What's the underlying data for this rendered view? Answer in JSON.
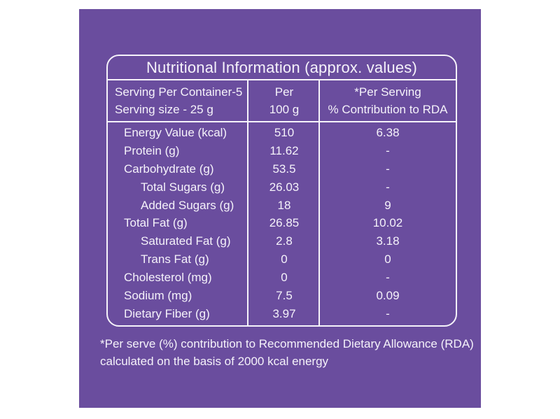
{
  "colors": {
    "canvas_background": "#ffffff",
    "panel_background": "#6a4d9e",
    "text_and_borders": "#f5f2fa"
  },
  "label": {
    "title": "Nutritional Information (approx. values)",
    "header": {
      "serving_line1": "Serving Per Container-5",
      "serving_line2": "Serving size - 25 g",
      "per100_line1": "Per",
      "per100_line2": "100 g",
      "rda_line1": "*Per Serving",
      "rda_line2": "% Contribution to RDA"
    },
    "rows": [
      {
        "name": "Energy Value (kcal)",
        "per_100g": "510",
        "rda": "6.38",
        "indent": false
      },
      {
        "name": "Protein (g)",
        "per_100g": "11.62",
        "rda": "-",
        "indent": false
      },
      {
        "name": "Carbohydrate (g)",
        "per_100g": "53.5",
        "rda": "-",
        "indent": false
      },
      {
        "name": "Total Sugars (g)",
        "per_100g": "26.03",
        "rda": "-",
        "indent": true
      },
      {
        "name": "Added Sugars (g)",
        "per_100g": "18",
        "rda": "9",
        "indent": true
      },
      {
        "name": "Total Fat (g)",
        "per_100g": "26.85",
        "rda": "10.02",
        "indent": false
      },
      {
        "name": "Saturated Fat (g)",
        "per_100g": "2.8",
        "rda": "3.18",
        "indent": true
      },
      {
        "name": "Trans Fat (g)",
        "per_100g": "0",
        "rda": "0",
        "indent": true
      },
      {
        "name": "Cholesterol (mg)",
        "per_100g": "0",
        "rda": "-",
        "indent": false
      },
      {
        "name": "Sodium (mg)",
        "per_100g": "7.5",
        "rda": "0.09",
        "indent": false
      },
      {
        "name": "Dietary Fiber (g)",
        "per_100g": "3.97",
        "rda": "-",
        "indent": false
      }
    ],
    "footnote_line1": "*Per serve (%) contribution to Recommended Dietary Allowance (RDA)",
    "footnote_line2": "calculated on the basis of 2000 kcal energy"
  }
}
